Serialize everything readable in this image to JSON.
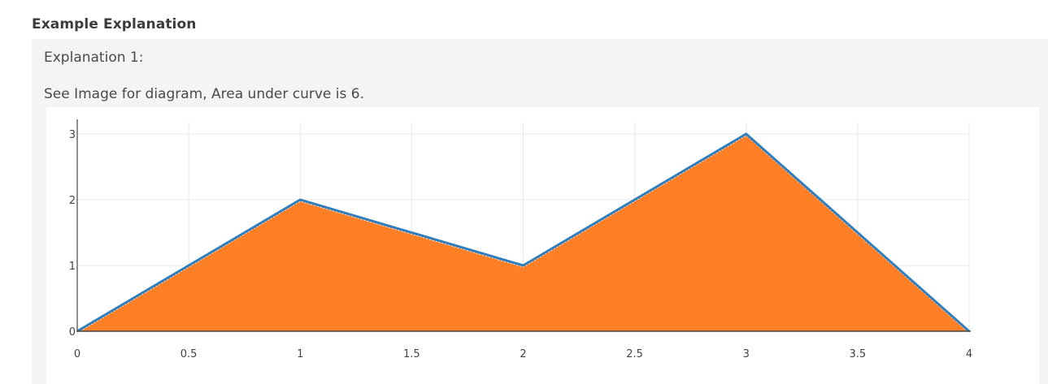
{
  "section_title": "Example Explanation",
  "explanation": {
    "heading": "Explanation 1:",
    "text": "See Image for diagram, Area under curve is 6."
  },
  "chart_data": {
    "type": "area",
    "x": [
      0,
      1,
      2,
      3,
      4
    ],
    "y": [
      0,
      2,
      1,
      3,
      0
    ],
    "xlim": [
      0,
      4
    ],
    "ylim": [
      0,
      3
    ],
    "x_ticks": [
      0,
      0.5,
      1,
      1.5,
      2,
      2.5,
      3,
      3.5,
      4
    ],
    "x_tick_labels": [
      "0",
      "0.5",
      "1",
      "1.5",
      "2",
      "2.5",
      "3",
      "3.5",
      "4"
    ],
    "y_ticks": [
      0,
      1,
      2,
      3
    ],
    "y_tick_labels": [
      "0",
      "1",
      "2",
      "3"
    ],
    "grid": true,
    "fill_color": "#ff7f27",
    "line_color": "#2f7fbf",
    "grid_color": "#e8e8e8",
    "axis_color": "#444444"
  }
}
